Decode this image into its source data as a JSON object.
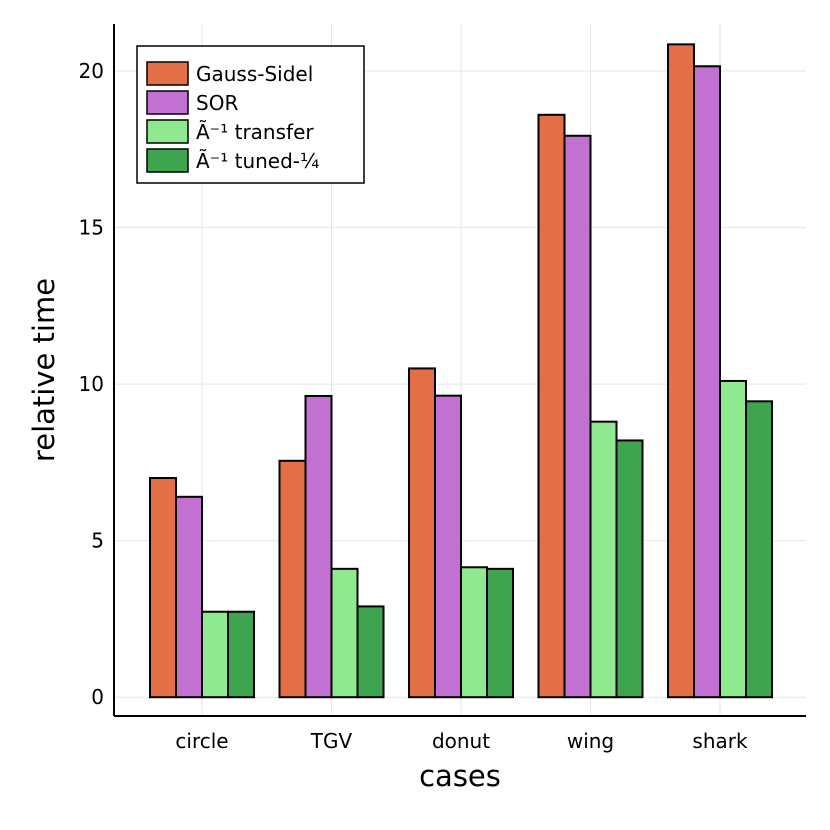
{
  "chart_data": {
    "type": "bar",
    "title": "",
    "xlabel": "cases",
    "ylabel": "relative time",
    "categories": [
      "circle",
      "TGV",
      "donut",
      "wing",
      "shark"
    ],
    "ylim": [
      -0.6,
      21.5
    ],
    "yticks": [
      0,
      5,
      10,
      15,
      20
    ],
    "grid": true,
    "legend_position": "top-left",
    "series": [
      {
        "name": "Gauss-Sidel",
        "color": "#e26f46",
        "values": [
          7.0,
          7.55,
          10.5,
          18.6,
          20.85
        ]
      },
      {
        "name": "SOR",
        "color": "#c271d2",
        "values": [
          6.4,
          9.62,
          9.63,
          17.93,
          20.15
        ]
      },
      {
        "name": "Ã⁻¹ transfer",
        "color": "#8fea8f",
        "values": [
          2.73,
          4.1,
          4.15,
          8.8,
          10.1
        ]
      },
      {
        "name": "Ã⁻¹ tuned-¼",
        "color": "#3ea44d",
        "values": [
          2.73,
          2.9,
          4.1,
          8.2,
          9.45
        ]
      }
    ]
  }
}
